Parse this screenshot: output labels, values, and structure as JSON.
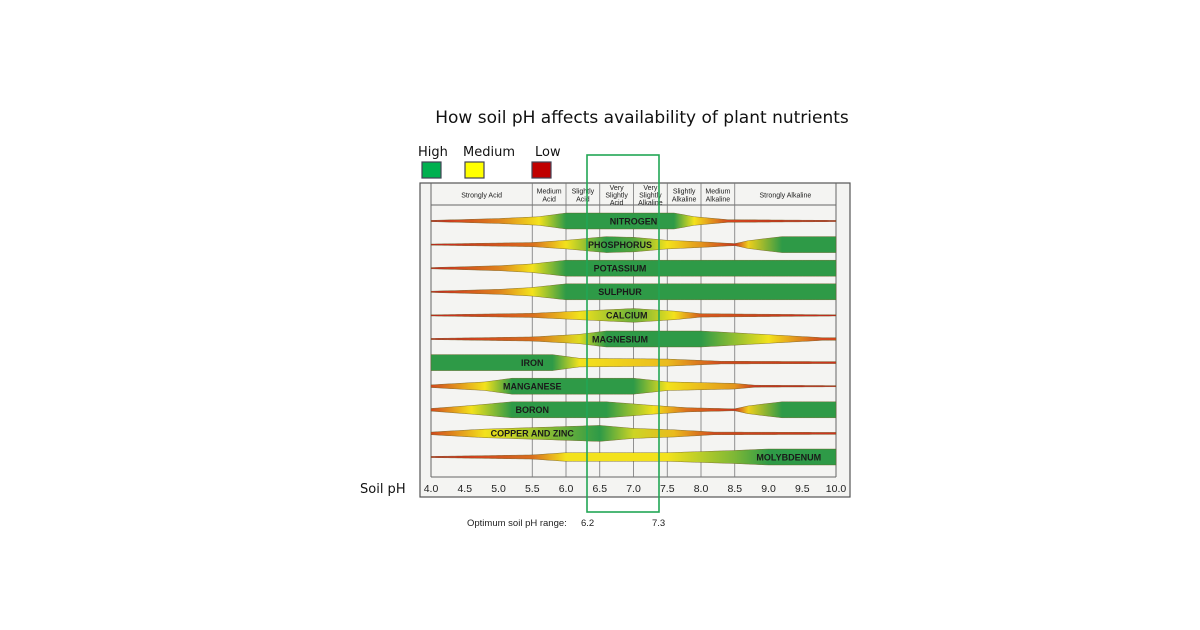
{
  "chart_data": {
    "type": "area",
    "title": "How soil pH affects availability of plant nutrients",
    "xlabel": "Soil pH",
    "xlim": [
      4.0,
      10.0
    ],
    "x_ticks": [
      "4.0",
      "4.5",
      "5.0",
      "5.5",
      "6.0",
      "6.5",
      "7.0",
      "7.5",
      "8.0",
      "8.5",
      "9.0",
      "9.5",
      "10.0"
    ],
    "legend": [
      {
        "label": "High",
        "color": "#00b050",
        "level": 1
      },
      {
        "label": "Medium",
        "color": "#ffff00",
        "level": 0.5
      },
      {
        "label": "Low",
        "color": "#c00000",
        "level": 0
      }
    ],
    "legend_placement": "top-left",
    "band_colors": {
      "high": "#2e9a47",
      "medium": "#f3e21c",
      "low": "#c8211f"
    },
    "ph_classes": [
      {
        "label": [
          "Strongly Acid"
        ],
        "range": [
          4.0,
          5.5
        ]
      },
      {
        "label": [
          "Medium",
          "Acid"
        ],
        "range": [
          5.5,
          6.0
        ]
      },
      {
        "label": [
          "Slightly",
          "Acid"
        ],
        "range": [
          6.0,
          6.5
        ]
      },
      {
        "label": [
          "Very",
          "Slightly",
          "Acid"
        ],
        "range": [
          6.5,
          7.0
        ]
      },
      {
        "label": [
          "Very",
          "Slightly",
          "Alkaline"
        ],
        "range": [
          7.0,
          7.5
        ]
      },
      {
        "label": [
          "Slightly",
          "Alkaline"
        ],
        "range": [
          7.5,
          8.0
        ]
      },
      {
        "label": [
          "Medium",
          "Alkaline"
        ],
        "range": [
          8.0,
          8.5
        ]
      },
      {
        "label": [
          "Strongly Alkaline"
        ],
        "range": [
          8.5,
          10.0
        ]
      }
    ],
    "nutrients": [
      {
        "name": "NITROGEN",
        "availability": [
          [
            4,
            0
          ],
          [
            5,
            0.25
          ],
          [
            5.6,
            0.5
          ],
          [
            6,
            1
          ],
          [
            7.6,
            1
          ],
          [
            7.9,
            0.5
          ],
          [
            8.4,
            0.1
          ],
          [
            10,
            0
          ]
        ]
      },
      {
        "name": "PHOSPHORUS",
        "availability": [
          [
            4,
            0
          ],
          [
            5.5,
            0.2
          ],
          [
            6,
            0.5
          ],
          [
            6.6,
            1
          ],
          [
            7,
            0.9
          ],
          [
            7.5,
            0.5
          ],
          [
            8,
            0.3
          ],
          [
            8.5,
            0.05
          ],
          [
            8.7,
            0.45
          ],
          [
            9.2,
            1
          ],
          [
            10,
            1
          ]
        ]
      },
      {
        "name": "POTASSIUM",
        "availability": [
          [
            4,
            0
          ],
          [
            5,
            0.25
          ],
          [
            5.5,
            0.5
          ],
          [
            6,
            1
          ],
          [
            10,
            1
          ]
        ]
      },
      {
        "name": "SULPHUR",
        "availability": [
          [
            4,
            0
          ],
          [
            5,
            0.25
          ],
          [
            5.5,
            0.5
          ],
          [
            6,
            1
          ],
          [
            10,
            1
          ]
        ]
      },
      {
        "name": "CALCIUM",
        "availability": [
          [
            4,
            0
          ],
          [
            5.5,
            0.2
          ],
          [
            6.2,
            0.5
          ],
          [
            7,
            0.85
          ],
          [
            7.6,
            0.5
          ],
          [
            8,
            0.15
          ],
          [
            10,
            0
          ]
        ]
      },
      {
        "name": "MAGNESIUM",
        "availability": [
          [
            4,
            0
          ],
          [
            5.5,
            0.2
          ],
          [
            6.2,
            0.55
          ],
          [
            6.6,
            1
          ],
          [
            8,
            1
          ],
          [
            9,
            0.5
          ],
          [
            9.8,
            0.1
          ],
          [
            10,
            0.1
          ]
        ]
      },
      {
        "name": "IRON",
        "availability": [
          [
            4,
            1
          ],
          [
            5.8,
            1
          ],
          [
            6.2,
            0.5
          ],
          [
            7.5,
            0.4
          ],
          [
            8.3,
            0.1
          ],
          [
            10,
            0.05
          ]
        ]
      },
      {
        "name": "MANGANESE",
        "availability": [
          [
            4,
            0.1
          ],
          [
            4.8,
            0.5
          ],
          [
            5.2,
            1
          ],
          [
            7,
            1
          ],
          [
            7.5,
            0.5
          ],
          [
            8.5,
            0.3
          ],
          [
            8.8,
            0.05
          ],
          [
            10,
            0
          ]
        ]
      },
      {
        "name": "BORON",
        "availability": [
          [
            4,
            0.1
          ],
          [
            4.6,
            0.5
          ],
          [
            5.2,
            1
          ],
          [
            6.6,
            1
          ],
          [
            7.3,
            0.5
          ],
          [
            7.8,
            0.2
          ],
          [
            8.5,
            0.05
          ],
          [
            8.7,
            0.45
          ],
          [
            9.2,
            1
          ],
          [
            10,
            1
          ]
        ]
      },
      {
        "name": "COPPER AND ZINC",
        "availability": [
          [
            4,
            0.1
          ],
          [
            4.8,
            0.5
          ],
          [
            5.5,
            0.7
          ],
          [
            6.5,
            1
          ],
          [
            7,
            0.6
          ],
          [
            7.6,
            0.4
          ],
          [
            8.2,
            0.1
          ],
          [
            10,
            0.05
          ]
        ]
      },
      {
        "name": "MOLYBDENUM",
        "availability": [
          [
            4,
            0
          ],
          [
            5.5,
            0.2
          ],
          [
            6,
            0.5
          ],
          [
            7.5,
            0.5
          ],
          [
            8.5,
            0.8
          ],
          [
            9,
            1
          ],
          [
            10,
            1
          ]
        ]
      }
    ],
    "optimum_range": {
      "label": "Optimum soil pH range:",
      "low": "6.2",
      "high": "7.3",
      "box_color": "#22a655"
    }
  }
}
